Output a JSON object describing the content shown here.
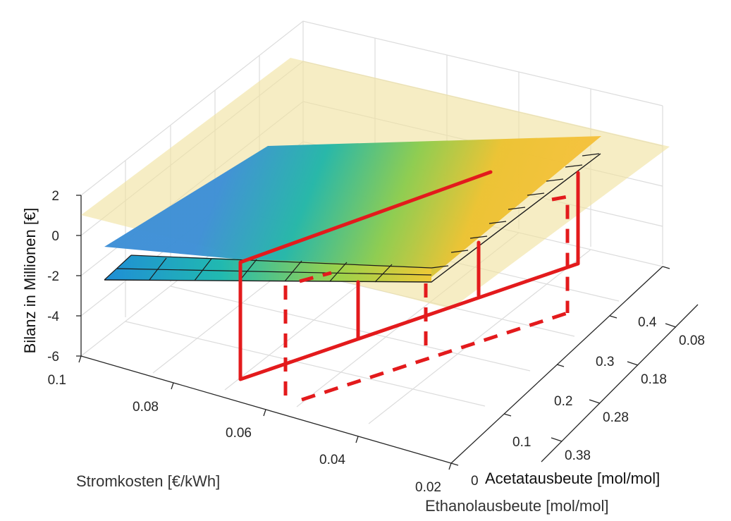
{
  "chart_data": {
    "type": "surface3d",
    "zlabel": "Bilanz in Millionen [€]",
    "xlabel": "Stromkosten [€/kWh]",
    "ylabel_outer": "Ethanolausbeute [mol/mol]",
    "ylabel_inner": "Acetatausbeute [mol/mol]",
    "z_ticks": [
      "2",
      "0",
      "-2",
      "-4",
      "-6"
    ],
    "x_ticks": [
      "0.1",
      "0.08",
      "0.06",
      "0.04",
      "0.02"
    ],
    "ethanol_ticks": [
      "0",
      "0.1",
      "0.2",
      "0.3",
      "0.4"
    ],
    "acetate_ticks": [
      "0.38",
      "0.28",
      "0.18",
      "0.08"
    ],
    "zlim": [
      -6,
      2
    ],
    "xlim": [
      0.02,
      0.1
    ],
    "ethanol_lim": [
      0,
      0.4
    ],
    "acetate_lim": [
      0.08,
      0.38
    ],
    "colormap": "parula",
    "surfaces": [
      {
        "name": "reference_plane",
        "color": "#f0e2a0",
        "opacity": 0.6
      },
      {
        "name": "balance_surface",
        "colormap": "parula"
      },
      {
        "name": "lower_grid_surface",
        "colormap": "parula"
      }
    ],
    "highlight": {
      "color": "#e31a1c",
      "solid_box": true,
      "dashed_box": true
    },
    "grid": true
  }
}
